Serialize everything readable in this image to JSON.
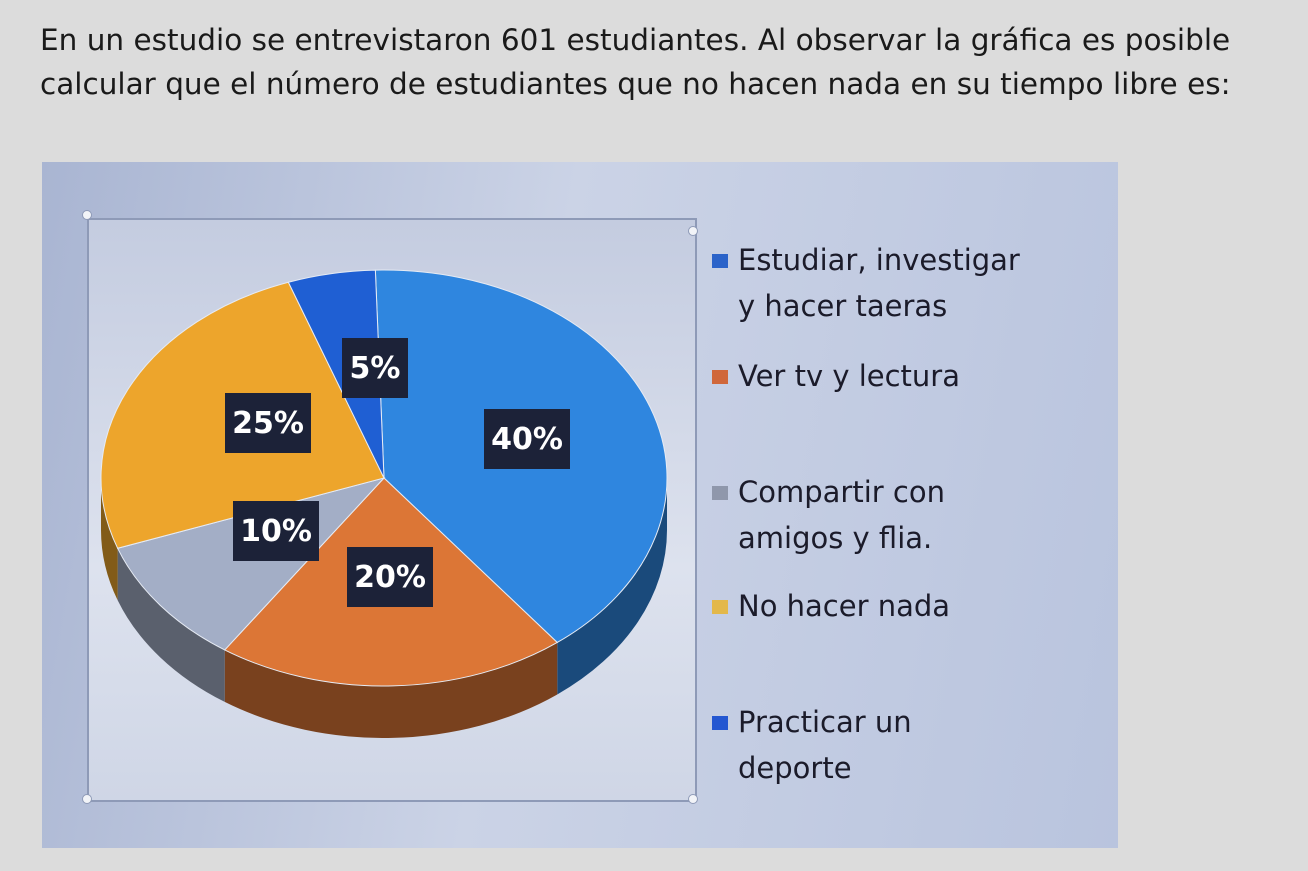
{
  "question": {
    "line1": "En un estudio se entrevistaron 601 estudiantes. Al observar la gráfica es posible",
    "line2": "calcular que el número de estudiantes que no hacen nada en su tiempo libre es:"
  },
  "chart_data": {
    "type": "pie",
    "title": "",
    "slices": [
      {
        "name": "Estudiar, investigar y hacer taeras",
        "value": 40,
        "label": "40%",
        "color": "#2f86df"
      },
      {
        "name": "Ver tv y lectura",
        "value": 20,
        "label": "20%",
        "color": "#dc7636"
      },
      {
        "name": "Compartir con amigos y flia.",
        "value": 10,
        "label": "10%",
        "color": "#a3aec6"
      },
      {
        "name": "No hacer nada",
        "value": 25,
        "label": "25%",
        "color": "#eda52c"
      },
      {
        "name": "Practicar un deporte",
        "value": 5,
        "label": "5%",
        "color": "#1f5fd3"
      }
    ],
    "legend_position": "right"
  },
  "legend": [
    {
      "line1": "Estudiar, investigar",
      "line2": "y hacer taeras",
      "color": "#2b63c9"
    },
    {
      "line1": "Ver tv y lectura",
      "line2": "",
      "color": "#d0673a"
    },
    {
      "line1": "Compartir con",
      "line2": "amigos y flia.",
      "color": "#8f97ab"
    },
    {
      "line1": "No hacer nada",
      "line2": "",
      "color": "#e3b84a"
    },
    {
      "line1": "Practicar un",
      "line2": "deporte",
      "color": "#2457d1"
    }
  ]
}
